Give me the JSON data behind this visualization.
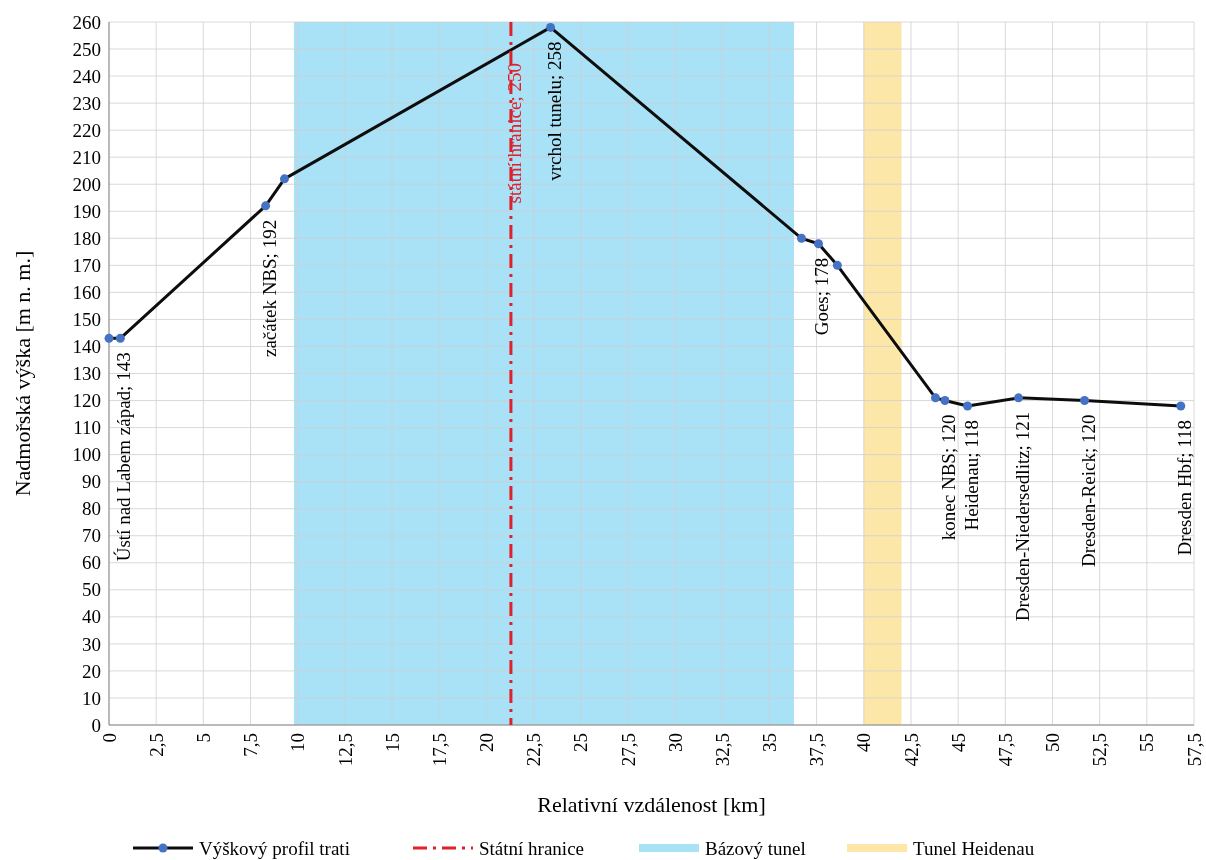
{
  "chart_data": {
    "type": "line",
    "xlabel": "Relativní vzdálenost [km]",
    "ylabel": "Nadmořská výška [m n. m.]",
    "x": [
      0,
      0.6,
      8.3,
      9.3,
      23.4,
      36.7,
      37.6,
      38.6,
      43.8,
      44.3,
      45.5,
      48.2,
      51.7,
      56.8
    ],
    "series": [
      {
        "name": "Výškový profil trati",
        "color": "#0d0d0d",
        "colors": [
          "#4472c4",
          "#4472c4",
          "#4472c4",
          "#4472c4",
          "#4472c4",
          "#4472c4",
          "#4472c4",
          "#4472c4",
          "#4472c4",
          "#4472c4",
          "#4472c4",
          "#4472c4",
          "#4472c4",
          "#4472c4"
        ],
        "values": [
          143,
          143,
          192,
          202,
          258,
          180,
          178,
          170,
          121,
          120,
          118,
          121,
          120,
          118
        ]
      }
    ],
    "marker": "circle",
    "line_style": "solid",
    "xlim": [
      0,
      57.5
    ],
    "ylim": [
      0,
      260
    ],
    "xticks": [
      0,
      {
        "value": 2.5,
        "label": "2,5"
      },
      5,
      {
        "value": 7.5,
        "label": "7,5"
      },
      10,
      {
        "value": 12.5,
        "label": "12,5"
      },
      15,
      {
        "value": 17.5,
        "label": "17,5"
      },
      20,
      {
        "value": 22.5,
        "label": "22,5"
      },
      25,
      {
        "value": 27.5,
        "label": "27,5"
      },
      30,
      {
        "value": 32.5,
        "label": "32,5"
      },
      35,
      {
        "value": 37.5,
        "label": "37,5"
      },
      40,
      {
        "value": 42.5,
        "label": "42,5"
      },
      45,
      {
        "value": 47.5,
        "label": "47,5"
      },
      50,
      {
        "value": 52.5,
        "label": "52,5"
      },
      55,
      {
        "value": 57.5,
        "label": "57,5"
      }
    ],
    "yticks": [
      0,
      10,
      20,
      30,
      40,
      50,
      60,
      70,
      80,
      90,
      100,
      110,
      120,
      130,
      140,
      150,
      160,
      170,
      180,
      190,
      200,
      210,
      220,
      230,
      240,
      250,
      260
    ],
    "grid": true,
    "legend": "bottom",
    "ref_lines": [
      {
        "axis": "x",
        "value": 21.3,
        "label": "Státní hranice",
        "color": "#e0202a",
        "line_style": "dashed"
      }
    ],
    "bands": [
      {
        "axis": "x",
        "from": 9.8,
        "to": 36.3,
        "label": "Bázový tunel",
        "color": "#a9e1f6"
      },
      {
        "axis": "x",
        "from": 40,
        "to": 42,
        "label": "Tunel Heidenau",
        "color": "#fde7a8"
      }
    ],
    "annotations": [
      {
        "text": "Ústí nad Labem západ; 143",
        "x": 0.6,
        "y": 143
      },
      {
        "text": "začátek NBS; 192",
        "x": 8.3,
        "y": 192
      },
      {
        "text": "státní hranice; 250",
        "x": 21.3,
        "y": 250
      },
      {
        "text": "vrchol tunelu; 258",
        "x": 23.4,
        "y": 258
      },
      {
        "text": "Goes; 178",
        "x": 37.6,
        "y": 178
      },
      {
        "text": "konec NBS; 120",
        "x": 44.3,
        "y": 120
      },
      {
        "text": "Heidenau; 118",
        "x": 45.5,
        "y": 118
      },
      {
        "text": "Dresden-Niedersedlitz; 121",
        "x": 48.2,
        "y": 121
      },
      {
        "text": "Dresden-Reick; 120",
        "x": 51.7,
        "y": 120
      },
      {
        "text": "Dresden Hbf; 118",
        "x": 56.8,
        "y": 118
      }
    ]
  }
}
